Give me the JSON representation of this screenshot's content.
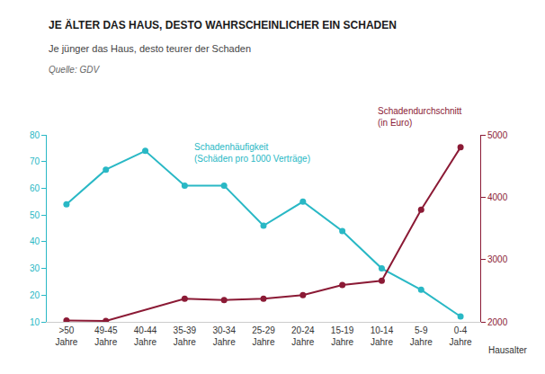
{
  "chart_data": {
    "type": "line",
    "title": "JE ÄLTER DAS HAUS, DESTO WAHRSCHEINLICHER EIN SCHADEN",
    "subtitle": "Je jünger das Haus, desto teurer der Schaden",
    "source": "Quelle: GDV",
    "x_label": "Hausalter",
    "categories": [
      ">50\nJahre",
      "49-45\nJahre",
      "40-44\nJahre",
      "35-39\nJahre",
      "30-34\nJahre",
      "25-29\nJahre",
      "20-24\nJahre",
      "15-19\nJahre",
      "10-14\nJahre",
      "5-9\nJahre",
      "0-4\nJahre"
    ],
    "series": [
      {
        "color": "#29b8c5",
        "marker": "circle",
        "line_style": "solid",
        "values": [
          54,
          67,
          74,
          61,
          61,
          46,
          55,
          44,
          30,
          22,
          12
        ]
      },
      {
        "color": "#8b1a35",
        "marker": "circle",
        "line_style": "solid",
        "axis": "y2",
        "values": [
          2020,
          2016,
          null,
          2370,
          2350,
          2370,
          2430,
          2590,
          2660,
          3800,
          4800
        ]
      }
    ],
    "ylim": [
      10,
      80
    ],
    "yticks": [
      10,
      20,
      30,
      40,
      50,
      60,
      70,
      80
    ],
    "y2lim": [
      2000,
      5000
    ],
    "y2ticks": [
      2000,
      3000,
      4000,
      5000
    ],
    "annotations": [
      "Schadenhäufigkeit\n(Schäden pro 1000 Verträge)",
      "Schadendurchschnitt\n(in Euro)"
    ],
    "grid": false
  }
}
